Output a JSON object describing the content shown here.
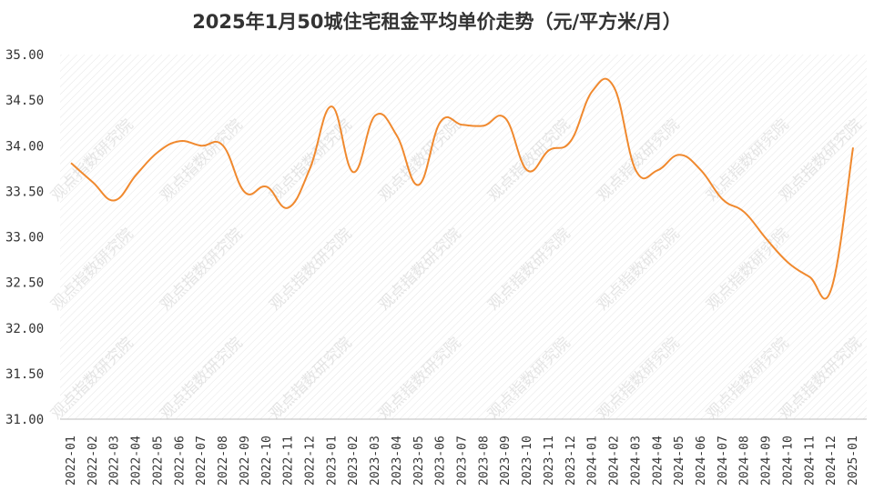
{
  "chart_data": {
    "type": "line",
    "title": "2025年1月50城住宅租金平均单价走势（元/平方米/月）",
    "xlabel": "",
    "ylabel": "",
    "ylim": [
      31.0,
      35.0
    ],
    "yticks": [
      "31.00",
      "31.50",
      "32.00",
      "32.50",
      "33.00",
      "33.50",
      "34.00",
      "34.50",
      "35.00"
    ],
    "grid": "hatched background, no grid lines",
    "legend": "none",
    "line_color": "#f0892e",
    "categories": [
      "2022-01",
      "2022-02",
      "2022-03",
      "2022-04",
      "2022-05",
      "2022-06",
      "2022-07",
      "2022-08",
      "2022-09",
      "2022-10",
      "2022-11",
      "2022-12",
      "2023-01",
      "2023-02",
      "2023-03",
      "2023-04",
      "2023-05",
      "2023-06",
      "2023-07",
      "2023-08",
      "2023-09",
      "2023-10",
      "2023-11",
      "2023-12",
      "2024-01",
      "2024-02",
      "2024-03",
      "2024-04",
      "2024-05",
      "2024-06",
      "2024-07",
      "2024-08",
      "2024-09",
      "2024-10",
      "2024-11",
      "2024-12",
      "2025-01"
    ],
    "series": [
      {
        "values": [
          33.81,
          33.6,
          33.4,
          33.68,
          33.93,
          34.05,
          34.0,
          34.0,
          33.49,
          33.55,
          33.32,
          33.75,
          34.43,
          33.71,
          34.33,
          34.11,
          33.57,
          34.26,
          34.23,
          34.22,
          34.3,
          33.73,
          33.95,
          34.05,
          34.6,
          34.64,
          33.73,
          33.73,
          33.9,
          33.73,
          33.41,
          33.27,
          32.98,
          32.72,
          32.56,
          32.43,
          33.98
        ]
      }
    ]
  },
  "watermark": "观点指数研究院"
}
